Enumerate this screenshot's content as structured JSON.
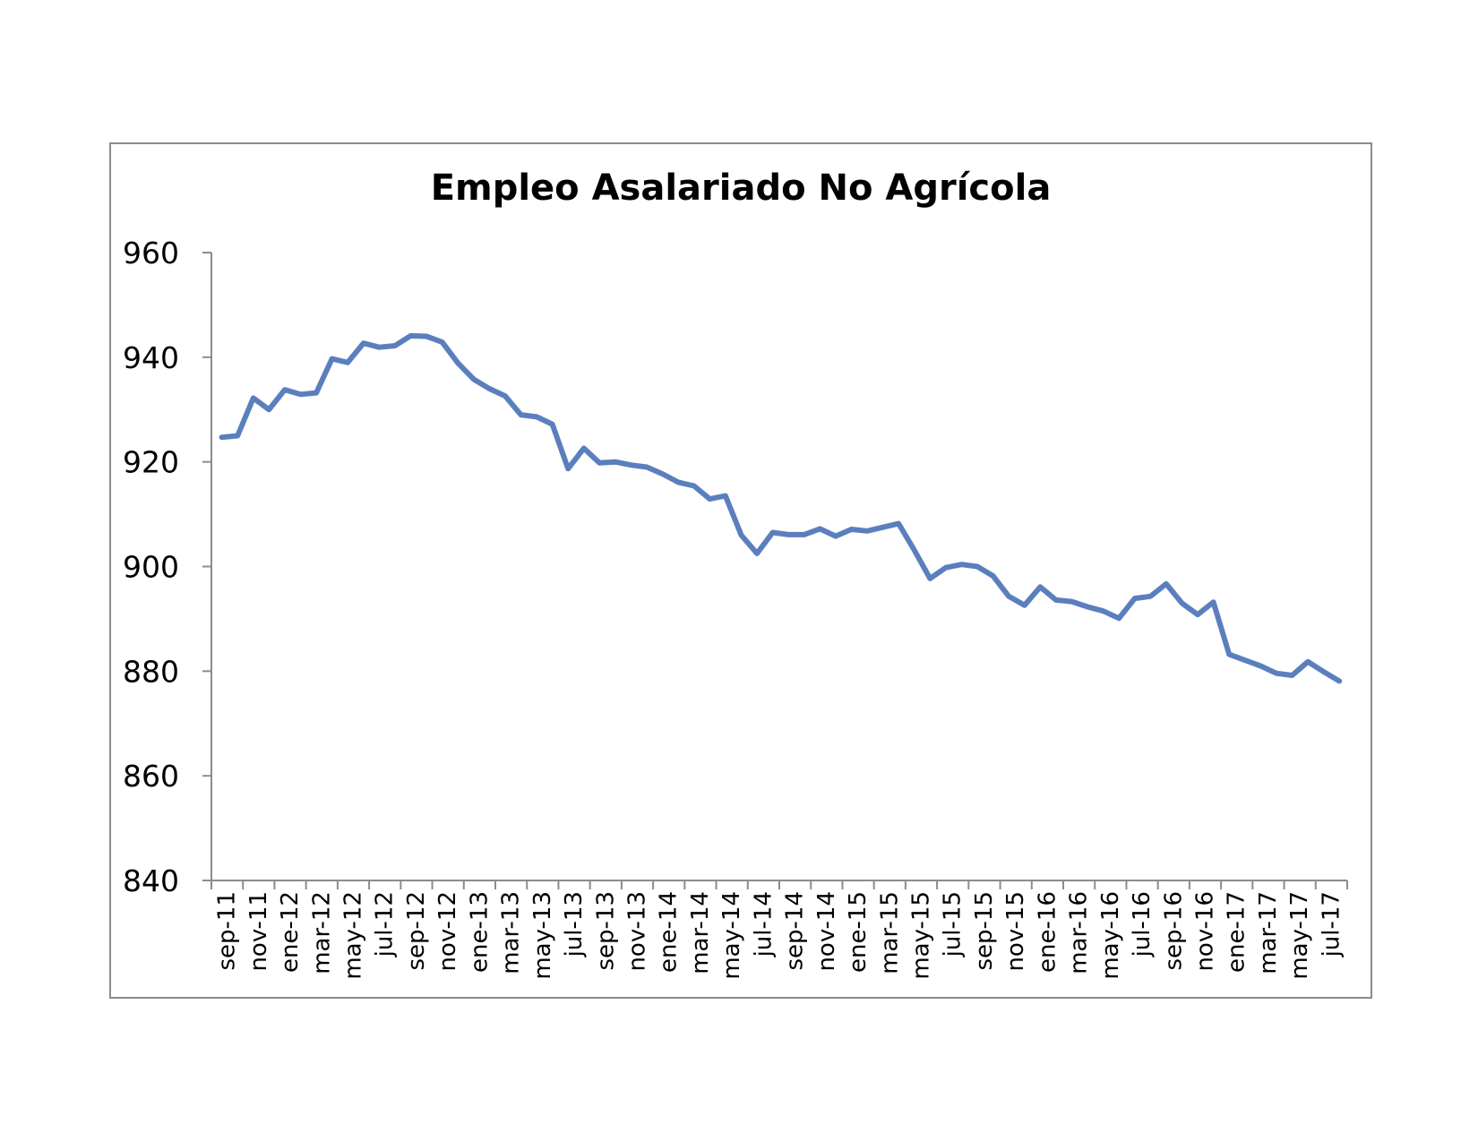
{
  "chart_data": {
    "type": "line",
    "title": "Empleo Asalariado No Agrícola",
    "xlabel": "",
    "ylabel": "",
    "ylim": [
      840,
      960
    ],
    "yticks": [
      840,
      860,
      880,
      900,
      920,
      940,
      960
    ],
    "grid": false,
    "legend": "none",
    "colors": {
      "line": "#5b7fbe",
      "axis": "#8c8c8c",
      "frame": "#8c8c8c"
    },
    "tick_labels": [
      "sep-11",
      "nov-11",
      "ene-12",
      "mar-12",
      "may-12",
      "jul-12",
      "sep-12",
      "nov-12",
      "ene-13",
      "mar-13",
      "may-13",
      "jul-13",
      "sep-13",
      "nov-13",
      "ene-14",
      "mar-14",
      "may-14",
      "jul-14",
      "sep-14",
      "nov-14",
      "ene-15",
      "mar-15",
      "may-15",
      "jul-15",
      "sep-15",
      "nov-15",
      "ene-16",
      "mar-16",
      "may-16",
      "jul-16",
      "sep-16",
      "nov-16",
      "ene-17",
      "mar-17",
      "may-17",
      "jul-17"
    ],
    "categories": [
      "sep-11",
      "oct-11",
      "nov-11",
      "dic-11",
      "ene-12",
      "feb-12",
      "mar-12",
      "abr-12",
      "may-12",
      "jun-12",
      "jul-12",
      "ago-12",
      "sep-12",
      "oct-12",
      "nov-12",
      "dic-12",
      "ene-13",
      "feb-13",
      "mar-13",
      "abr-13",
      "may-13",
      "jun-13",
      "jul-13",
      "ago-13",
      "sep-13",
      "oct-13",
      "nov-13",
      "dic-13",
      "ene-14",
      "feb-14",
      "mar-14",
      "abr-14",
      "may-14",
      "jun-14",
      "jul-14",
      "ago-14",
      "sep-14",
      "oct-14",
      "nov-14",
      "dic-14",
      "ene-15",
      "feb-15",
      "mar-15",
      "abr-15",
      "may-15",
      "jun-15",
      "jul-15",
      "ago-15",
      "sep-15",
      "oct-15",
      "nov-15",
      "dic-15",
      "ene-16",
      "feb-16",
      "mar-16",
      "abr-16",
      "may-16",
      "jun-16",
      "jul-16",
      "ago-16",
      "sep-16",
      "oct-16",
      "nov-16",
      "dic-16",
      "ene-17",
      "feb-17",
      "mar-17",
      "abr-17",
      "may-17",
      "jun-17",
      "jul-17",
      "ago-17"
    ],
    "series": [
      {
        "values": [
          924.7,
          925.0,
          932.2,
          930.0,
          933.8,
          932.9,
          933.2,
          939.7,
          939.0,
          942.7,
          941.9,
          942.2,
          944.1,
          944.0,
          942.9,
          938.9,
          935.8,
          934.0,
          932.6,
          929.0,
          928.6,
          927.2,
          918.7,
          922.6,
          919.8,
          920.0,
          919.4,
          919.0,
          917.7,
          916.1,
          915.4,
          912.9,
          913.5,
          906.0,
          902.5,
          906.5,
          906.1,
          906.1,
          907.2,
          905.8,
          907.1,
          906.8,
          907.5,
          908.2,
          903.1,
          897.7,
          899.8,
          900.4,
          900.0,
          898.2,
          894.3,
          892.6,
          896.1,
          893.6,
          893.3,
          892.3,
          891.5,
          890.1,
          893.9,
          894.3,
          896.7,
          893.0,
          890.8,
          893.2,
          883.2,
          882.1,
          881.0,
          879.6,
          879.2,
          881.8,
          879.9,
          878.1
        ]
      }
    ]
  }
}
